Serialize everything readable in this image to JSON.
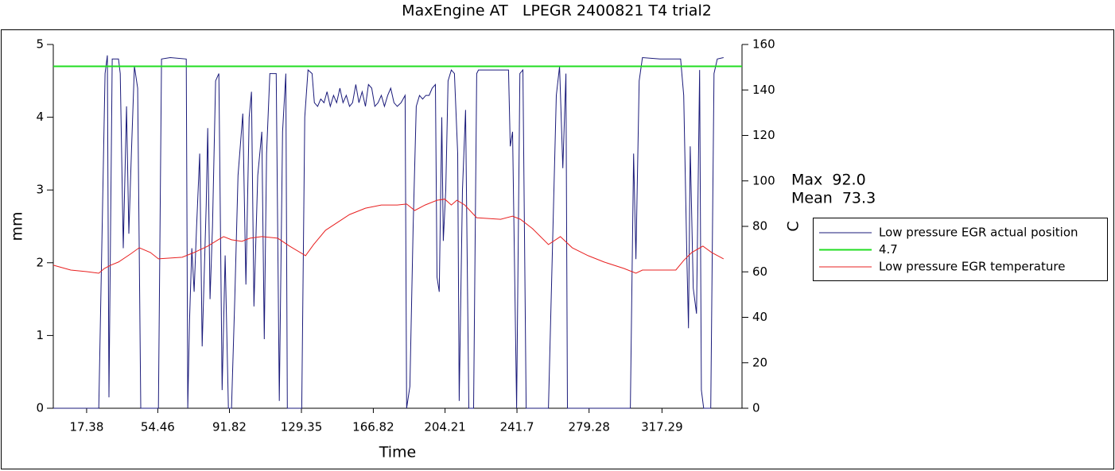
{
  "chart_data": {
    "type": "line",
    "title": "MaxEngine AT   LPEGR 2400821 T4 trial2",
    "xlabel": "Time",
    "ylabel": "mm",
    "y2label": "C",
    "annotations": [
      "Max  92.0",
      "Mean  73.3"
    ],
    "xlim": [
      0,
      359
    ],
    "xticks": [
      17.38,
      54.46,
      91.82,
      129.35,
      166.82,
      204.21,
      241.7,
      279.28,
      317.29
    ],
    "ylim": [
      0,
      5
    ],
    "yticks": [
      0,
      1,
      2,
      3,
      4,
      5
    ],
    "y2lim": [
      0,
      160
    ],
    "y2ticks": [
      0,
      20,
      40,
      60,
      80,
      100,
      120,
      140,
      160
    ],
    "grid": false,
    "legend": "right",
    "series": [
      {
        "name": "Low pressure EGR actual position",
        "color": "#1a1a7a",
        "x": [
          0,
          23.7,
          27.0,
          28.2,
          29.0,
          30.7,
          34.0,
          34.9,
          36.5,
          38.2,
          39.4,
          40.7,
          42.3,
          44.0,
          45.6,
          54.8,
          56.4,
          61.0,
          69.3,
          70.1,
          71.0,
          72.2,
          73.4,
          74.7,
          76.3,
          77.6,
          79.7,
          80.5,
          81.7,
          83.0,
          84.6,
          86.3,
          88.0,
          89.6,
          91.3,
          92.9,
          94.6,
          96.3,
          98.8,
          100.4,
          102.1,
          103.3,
          104.6,
          106.6,
          108.7,
          110.0,
          111.2,
          112.9,
          116.2,
          117.8,
          119.5,
          121.2,
          122.0,
          129.5,
          131.1,
          132.8,
          134.9,
          136.1,
          137.8,
          139.4,
          141.1,
          142.7,
          144.4,
          146.1,
          147.7,
          149.4,
          151.0,
          152.7,
          154.4,
          156.0,
          157.7,
          159.3,
          161.0,
          162.7,
          164.3,
          166.0,
          167.6,
          169.3,
          171.0,
          172.6,
          174.3,
          175.9,
          177.6,
          179.3,
          181.3,
          183.4,
          184.2,
          185.9,
          187.6,
          189.2,
          190.9,
          192.5,
          194.2,
          195.9,
          197.5,
          199.2,
          200.0,
          201.2,
          202.5,
          203.3,
          204.6,
          205.8,
          207.5,
          209.1,
          210.8,
          211.6,
          213.3,
          214.9,
          216.6,
          219.1,
          220.7,
          221.6,
          237.3,
          238.2,
          239.4,
          241.5,
          243.2,
          244.8,
          246.5,
          247.7,
          258.1,
          262.2,
          263.9,
          265.6,
          267.2,
          268.0,
          300.8,
          302.5,
          303.7,
          305.4,
          307.1,
          316.2,
          327.0,
          328.6,
          330.3,
          331.1,
          332.0,
          333.6,
          335.3,
          336.9,
          337.8,
          339.0,
          342.7,
          344.4,
          346.1,
          349.4
        ],
        "values": [
          0,
          0,
          4.6,
          4.85,
          0.15,
          4.8,
          4.8,
          4.6,
          2.2,
          4.15,
          2.4,
          3.5,
          4.7,
          4.4,
          0,
          0,
          4.8,
          4.82,
          4.8,
          0,
          1.2,
          2.2,
          1.6,
          2.5,
          3.5,
          0.85,
          2.8,
          3.85,
          1.5,
          2.5,
          4.5,
          4.6,
          0.25,
          2.1,
          0,
          0,
          1.5,
          3.2,
          4.05,
          1.7,
          4.0,
          4.35,
          1.4,
          3.2,
          3.8,
          0.95,
          3.5,
          4.6,
          4.6,
          0.1,
          3.8,
          4.6,
          0,
          0,
          4.0,
          4.65,
          4.6,
          4.2,
          4.15,
          4.25,
          4.2,
          4.35,
          4.15,
          4.3,
          4.2,
          4.4,
          4.2,
          4.3,
          4.15,
          4.2,
          4.45,
          4.2,
          4.35,
          4.15,
          4.45,
          4.4,
          4.15,
          4.2,
          4.3,
          4.15,
          4.3,
          4.4,
          4.2,
          4.15,
          4.2,
          4.3,
          0,
          0.3,
          2.5,
          4.15,
          4.3,
          4.25,
          4.3,
          4.3,
          4.4,
          4.45,
          1.8,
          1.6,
          4.0,
          2.3,
          3.0,
          4.5,
          4.65,
          4.6,
          3.5,
          0.1,
          3.0,
          4.1,
          0,
          0,
          4.6,
          4.65,
          4.65,
          3.6,
          3.8,
          0,
          4.6,
          4.65,
          0,
          0,
          0,
          4.3,
          4.7,
          3.3,
          4.6,
          0,
          0,
          3.5,
          2.05,
          4.5,
          4.82,
          4.8,
          4.8,
          4.3,
          2.0,
          1.1,
          3.6,
          1.65,
          1.3,
          4.65,
          0.25,
          0,
          0,
          4.6,
          4.8,
          4.82
        ]
      },
      {
        "name": "4.7",
        "color": "#22dd22",
        "hline": true,
        "values": [
          4.7
        ]
      },
      {
        "name": "Low pressure EGR temperature",
        "color": "#e82020",
        "axis": "y2",
        "x": [
          0,
          9.1,
          17.4,
          23.7,
          26.6,
          29.9,
          34.0,
          40.2,
          44.8,
          50.6,
          54.8,
          67.2,
          73.4,
          80.5,
          85.9,
          88.8,
          92.9,
          98.3,
          102.5,
          108.7,
          117.0,
          123.2,
          131.5,
          135.7,
          141.9,
          148.1,
          154.4,
          162.7,
          171.0,
          179.3,
          184.2,
          188.4,
          193.8,
          200.0,
          204.1,
          207.5,
          210.4,
          214.5,
          220.7,
          233.2,
          239.4,
          243.5,
          249.8,
          258.1,
          264.3,
          270.5,
          278.8,
          287.1,
          297.5,
          303.7,
          307.1,
          324.5,
          328.6,
          332.8,
          338.6,
          343.2,
          349.4
        ],
        "values": [
          62.9,
          60.8,
          60.1,
          59.4,
          61.5,
          62.9,
          64.3,
          67.8,
          70.6,
          68.5,
          65.7,
          66.4,
          68.5,
          71.3,
          74.1,
          75.5,
          74.1,
          73.4,
          74.8,
          75.5,
          74.8,
          71.3,
          67.1,
          72.0,
          78.3,
          81.7,
          85.2,
          88.0,
          89.4,
          89.4,
          89.8,
          87.0,
          89.4,
          91.5,
          92.0,
          89.4,
          91.5,
          89.4,
          83.8,
          83.1,
          84.5,
          83.1,
          79.0,
          72.0,
          75.5,
          70.6,
          67.1,
          64.3,
          61.5,
          59.4,
          60.8,
          60.8,
          65.0,
          68.5,
          71.3,
          68.5,
          65.7
        ]
      }
    ]
  }
}
